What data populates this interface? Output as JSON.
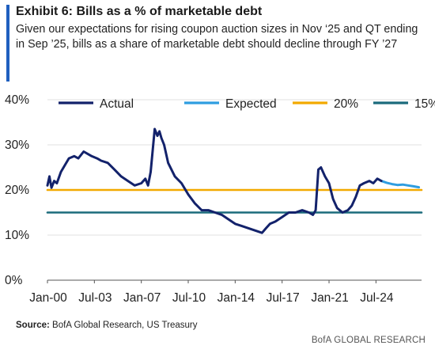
{
  "exhibit": {
    "title": "Exhibit 6: Bills as a % of marketable debt",
    "subtitle": "Given our expectations for rising coupon auction sizes in Nov ‘25 and QT ending in Sep ’25, bills as a share of marketable debt should decline through FY ’27",
    "accent_color": "#1f5fbf"
  },
  "footer": {
    "source_label": "Source:",
    "source_text": " BofA Global Research, US Treasury",
    "brand": "BofA GLOBAL RESEARCH"
  },
  "chart_data": {
    "type": "line",
    "ylim": [
      0,
      40
    ],
    "xlim": [
      2000.0,
      2027.9
    ],
    "y_ticks": [
      0,
      10,
      20,
      30,
      40
    ],
    "y_tick_labels": [
      "0%",
      "10%",
      "20%",
      "30%",
      "40%"
    ],
    "x_ticks": [
      2000.0,
      2003.5,
      2007.0,
      2010.5,
      2014.0,
      2017.5,
      2021.0,
      2024.5
    ],
    "x_tick_labels": [
      "Jan-00",
      "Jul-03",
      "Jan-07",
      "Jul-10",
      "Jan-14",
      "Jul-17",
      "Jan-21",
      "Jul-24"
    ],
    "grid": "horizontal",
    "legend_position": "top",
    "series": [
      {
        "name": "Actual",
        "color": "#13226b",
        "points": [
          [
            2000.0,
            21
          ],
          [
            2000.15,
            23
          ],
          [
            2000.3,
            20.5
          ],
          [
            2000.5,
            22
          ],
          [
            2000.7,
            21.5
          ],
          [
            2001.0,
            24
          ],
          [
            2001.3,
            25.5
          ],
          [
            2001.6,
            27
          ],
          [
            2002.0,
            27.5
          ],
          [
            2002.3,
            27
          ],
          [
            2002.7,
            28.5
          ],
          [
            2003.0,
            28
          ],
          [
            2003.3,
            27.5
          ],
          [
            2003.7,
            27
          ],
          [
            2004.0,
            26.5
          ],
          [
            2004.5,
            26
          ],
          [
            2005.0,
            24.5
          ],
          [
            2005.5,
            23
          ],
          [
            2006.0,
            22
          ],
          [
            2006.5,
            21
          ],
          [
            2007.0,
            21.5
          ],
          [
            2007.3,
            22.5
          ],
          [
            2007.5,
            21
          ],
          [
            2007.7,
            24
          ],
          [
            2008.0,
            33.5
          ],
          [
            2008.2,
            32
          ],
          [
            2008.35,
            33
          ],
          [
            2008.5,
            31.5
          ],
          [
            2008.7,
            30
          ],
          [
            2009.0,
            26
          ],
          [
            2009.5,
            23
          ],
          [
            2010.0,
            21.5
          ],
          [
            2010.5,
            19
          ],
          [
            2011.0,
            17
          ],
          [
            2011.5,
            15.5
          ],
          [
            2012.0,
            15.5
          ],
          [
            2012.5,
            15
          ],
          [
            2013.0,
            14.5
          ],
          [
            2013.5,
            13.5
          ],
          [
            2014.0,
            12.5
          ],
          [
            2014.5,
            12
          ],
          [
            2015.0,
            11.5
          ],
          [
            2015.5,
            11
          ],
          [
            2016.0,
            10.5
          ],
          [
            2016.3,
            11.5
          ],
          [
            2016.6,
            12.5
          ],
          [
            2017.0,
            13
          ],
          [
            2017.5,
            14
          ],
          [
            2018.0,
            15
          ],
          [
            2018.5,
            15
          ],
          [
            2019.0,
            15.5
          ],
          [
            2019.5,
            15
          ],
          [
            2019.8,
            14.5
          ],
          [
            2020.0,
            15.5
          ],
          [
            2020.2,
            24.5
          ],
          [
            2020.4,
            25
          ],
          [
            2020.7,
            23
          ],
          [
            2021.0,
            21.5
          ],
          [
            2021.3,
            18
          ],
          [
            2021.6,
            16
          ],
          [
            2022.0,
            15
          ],
          [
            2022.4,
            15.5
          ],
          [
            2022.7,
            16.5
          ],
          [
            2023.0,
            18.5
          ],
          [
            2023.3,
            21
          ],
          [
            2023.6,
            21.5
          ],
          [
            2024.0,
            22
          ],
          [
            2024.3,
            21.5
          ],
          [
            2024.6,
            22.5
          ],
          [
            2024.9,
            22
          ]
        ]
      },
      {
        "name": "Expected",
        "color": "#2f9de0",
        "points": [
          [
            2024.9,
            22
          ],
          [
            2025.3,
            21.6
          ],
          [
            2025.7,
            21.3
          ],
          [
            2026.1,
            21.1
          ],
          [
            2026.5,
            21.2
          ],
          [
            2026.9,
            21.0
          ],
          [
            2027.3,
            20.8
          ],
          [
            2027.7,
            20.6
          ]
        ]
      },
      {
        "name": "20%",
        "color": "#f2a900",
        "points": [
          [
            2000.0,
            20
          ],
          [
            2027.9,
            20
          ]
        ]
      },
      {
        "name": "15%",
        "color": "#1b6b7c",
        "points": [
          [
            2000.0,
            15
          ],
          [
            2027.9,
            15
          ]
        ]
      }
    ]
  }
}
